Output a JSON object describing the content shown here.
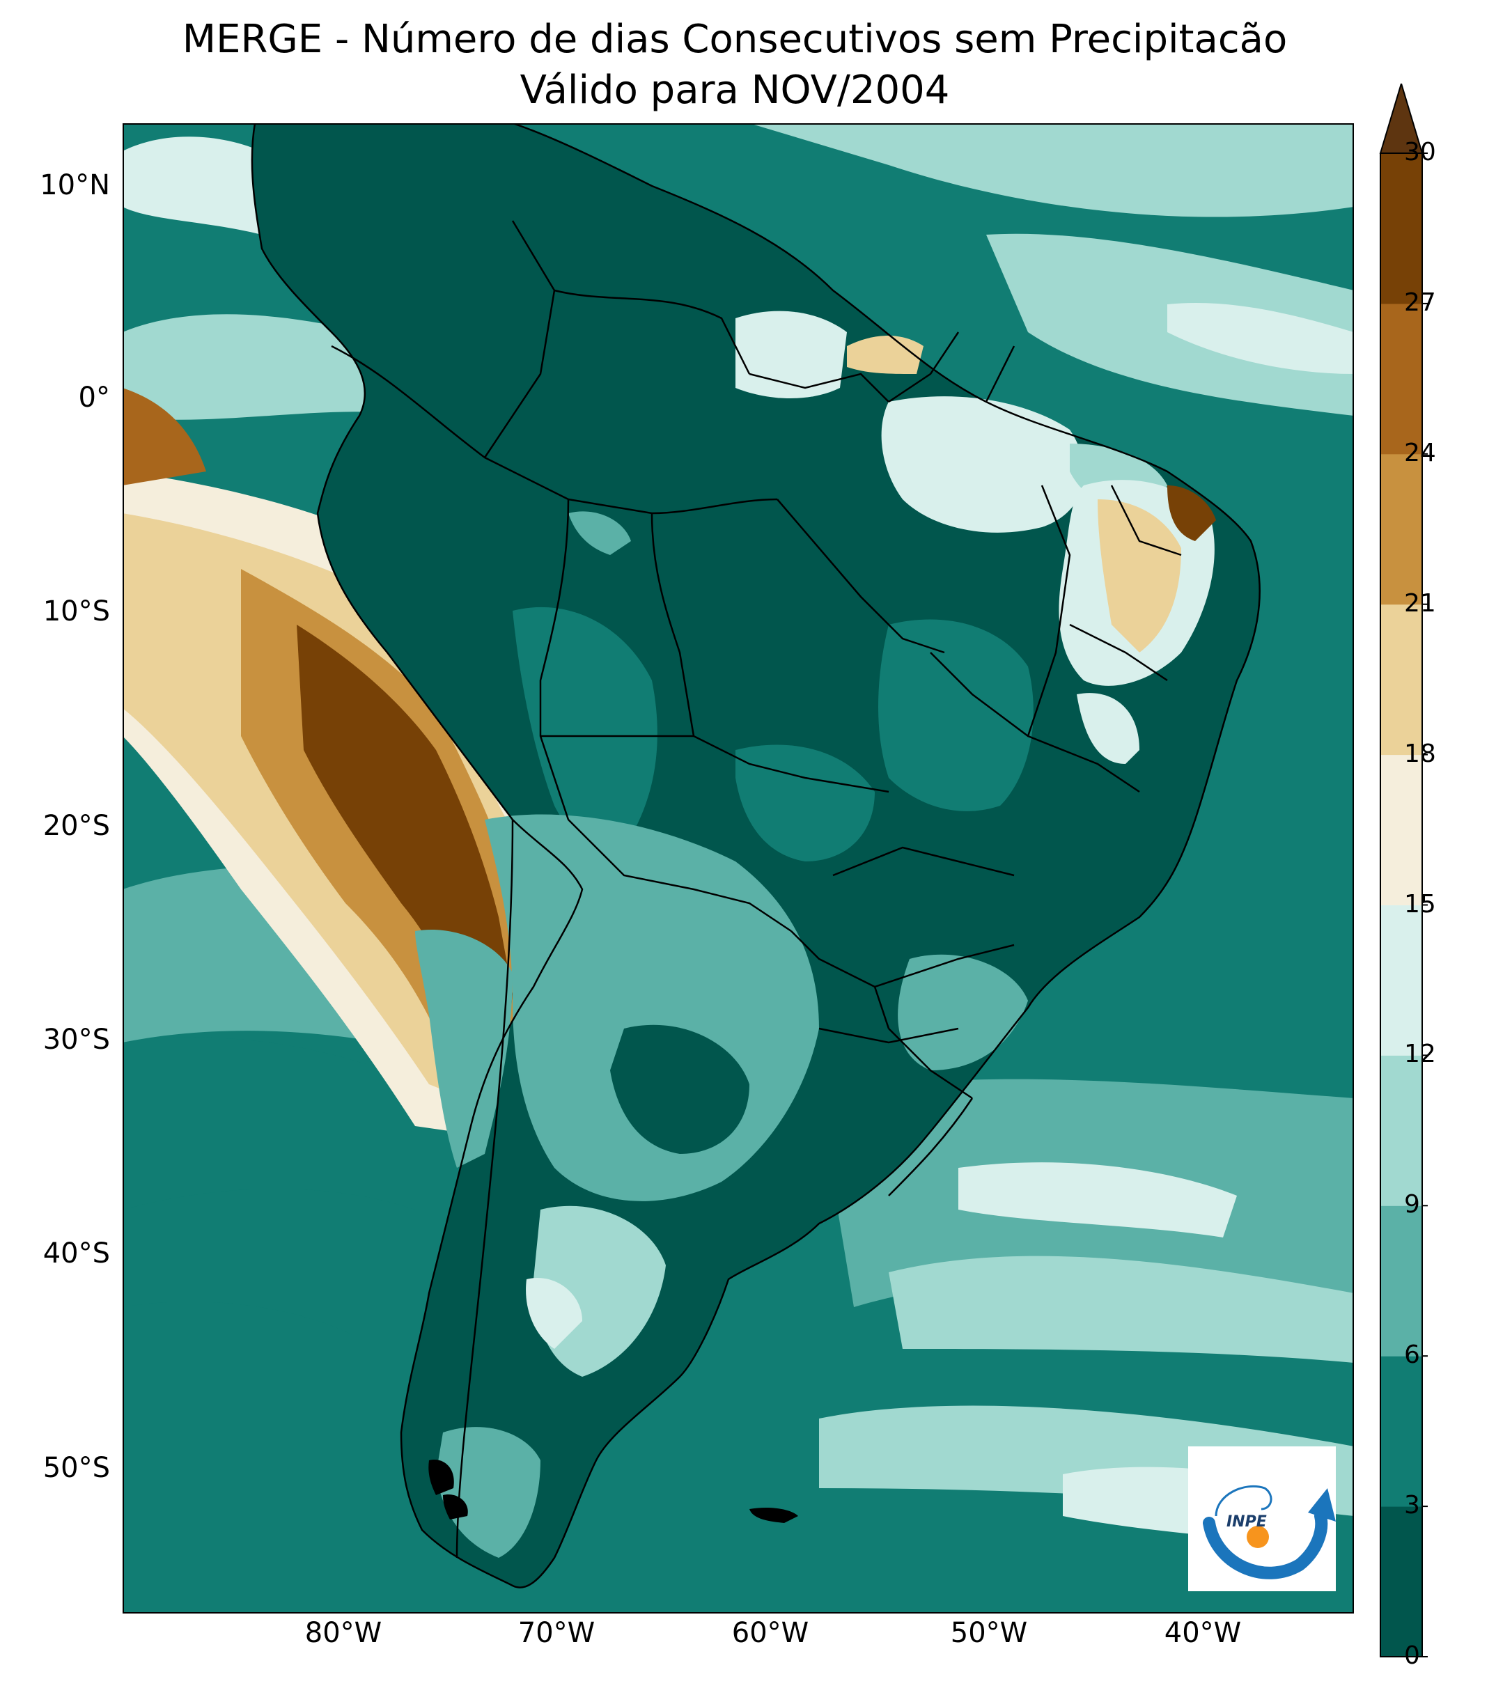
{
  "title": {
    "line1": "MERGE - Número de dias Consecutivos sem Precipitacão",
    "line2": "Válido para NOV/2004"
  },
  "axes": {
    "lat_ticks": [
      "10°N",
      "0°",
      "10°S",
      "20°S",
      "30°S",
      "40°S",
      "50°S"
    ],
    "lon_ticks": [
      "80°W",
      "70°W",
      "60°W",
      "50°W",
      "40°W"
    ]
  },
  "colorbar": {
    "ticks": [
      "0",
      "3",
      "6",
      "9",
      "12",
      "15",
      "18",
      "21",
      "24",
      "27",
      "30"
    ],
    "colors": [
      "#01564d",
      "#117d73",
      "#5bb1a7",
      "#a1d9d0",
      "#d9f0ec",
      "#f5eedc",
      "#ebd299",
      "#c8913f",
      "#a8661c",
      "#774106"
    ],
    "extend_color": "#5e3510"
  },
  "logo": {
    "text": "INPE",
    "colors": {
      "blue": "#1b75bc",
      "orange": "#f7941d"
    }
  },
  "map_colors": {
    "ocean_dark": "#117d73",
    "land_dark": "#01564d",
    "mid": "#5bb1a7",
    "light": "#a1d9d0",
    "pale": "#d9f0ec",
    "cream": "#f5eedc",
    "tan": "#ebd299",
    "brown": "#c8913f",
    "darkbrown": "#774106"
  }
}
